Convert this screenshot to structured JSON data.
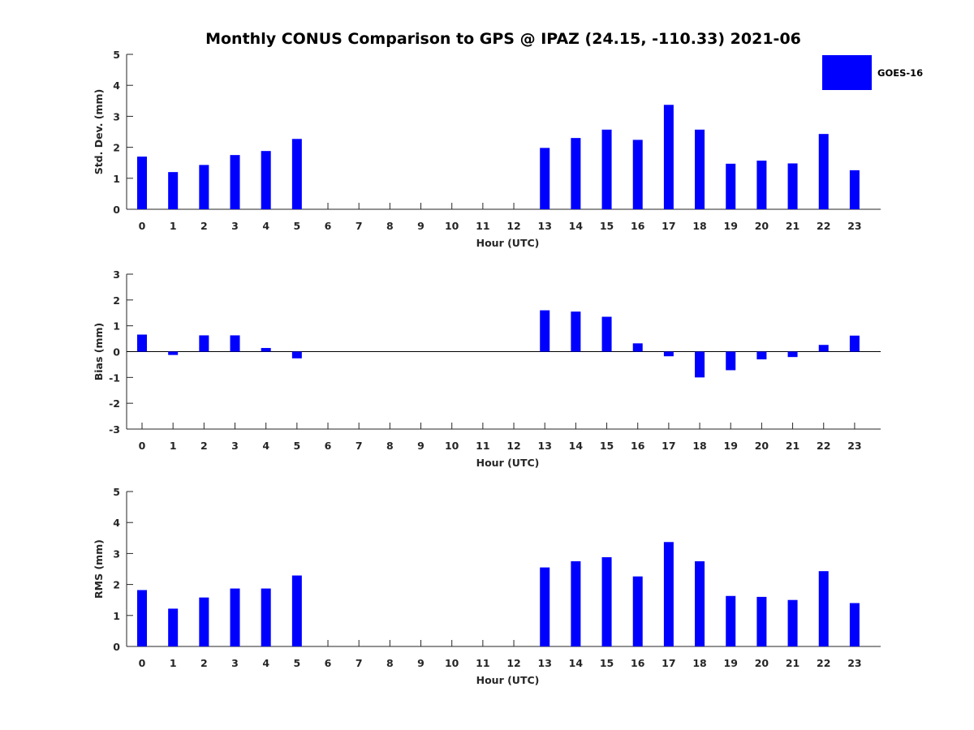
{
  "title": "Monthly CONUS Comparison to GPS @ IPAZ (24.15, -110.33) 2021-06",
  "legend": {
    "label": "GOES-16",
    "placement": "top-right"
  },
  "colors": {
    "bar": "#0000ff",
    "axis": "#262626"
  },
  "chart_data": [
    {
      "type": "bar",
      "title": "Monthly CONUS Comparison to GPS @ IPAZ (24.15, -110.33) 2021-06",
      "xlabel": "Hour (UTC)",
      "ylabel": "Std. Dev. (mm)",
      "ylim": [
        0,
        5
      ],
      "yticks": [
        0,
        1,
        2,
        3,
        4,
        5
      ],
      "categories": [
        "0",
        "1",
        "2",
        "3",
        "4",
        "5",
        "6",
        "7",
        "8",
        "9",
        "10",
        "11",
        "12",
        "13",
        "14",
        "15",
        "16",
        "17",
        "18",
        "19",
        "20",
        "21",
        "22",
        "23"
      ],
      "series": [
        {
          "name": "GOES-16",
          "values": [
            1.7,
            1.2,
            1.43,
            1.75,
            1.88,
            2.27,
            null,
            null,
            null,
            null,
            null,
            null,
            null,
            1.98,
            2.3,
            2.57,
            2.24,
            3.37,
            2.57,
            1.47,
            1.57,
            1.48,
            2.43,
            1.26
          ]
        }
      ]
    },
    {
      "type": "bar",
      "xlabel": "Hour (UTC)",
      "ylabel": "Bias (mm)",
      "ylim": [
        -3,
        3
      ],
      "yticks": [
        -3,
        -2,
        -1,
        0,
        1,
        2,
        3
      ],
      "zero_line": true,
      "categories": [
        "0",
        "1",
        "2",
        "3",
        "4",
        "5",
        "6",
        "7",
        "8",
        "9",
        "10",
        "11",
        "12",
        "13",
        "14",
        "15",
        "16",
        "17",
        "18",
        "19",
        "20",
        "21",
        "22",
        "23"
      ],
      "series": [
        {
          "name": "GOES-16",
          "values": [
            0.66,
            -0.13,
            0.63,
            0.63,
            0.14,
            -0.26,
            null,
            null,
            null,
            null,
            null,
            null,
            null,
            1.6,
            1.55,
            1.35,
            0.32,
            -0.18,
            -1.0,
            -0.72,
            -0.3,
            -0.21,
            0.26,
            0.62
          ]
        }
      ]
    },
    {
      "type": "bar",
      "xlabel": "Hour (UTC)",
      "ylabel": "RMS (mm)",
      "ylim": [
        0,
        5
      ],
      "yticks": [
        0,
        1,
        2,
        3,
        4,
        5
      ],
      "categories": [
        "0",
        "1",
        "2",
        "3",
        "4",
        "5",
        "6",
        "7",
        "8",
        "9",
        "10",
        "11",
        "12",
        "13",
        "14",
        "15",
        "16",
        "17",
        "18",
        "19",
        "20",
        "21",
        "22",
        "23"
      ],
      "series": [
        {
          "name": "GOES-16",
          "values": [
            1.82,
            1.22,
            1.58,
            1.87,
            1.87,
            2.29,
            null,
            null,
            null,
            null,
            null,
            null,
            null,
            2.55,
            2.75,
            2.88,
            2.26,
            3.37,
            2.75,
            1.63,
            1.6,
            1.5,
            2.43,
            1.4
          ]
        }
      ]
    }
  ]
}
